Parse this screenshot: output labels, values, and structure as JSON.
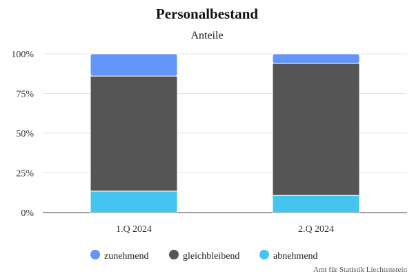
{
  "chart_data": {
    "type": "bar",
    "stacked": true,
    "title": "Personalbestand",
    "subtitle": "Anteile",
    "categories": [
      "1.Q 2024",
      "2.Q 2024"
    ],
    "series": [
      {
        "name": "abnehmend",
        "values": [
          13.5,
          10.8
        ],
        "color": "#43c5f0"
      },
      {
        "name": "gleichbleibend",
        "values": [
          72.5,
          83.2
        ],
        "color": "#555555"
      },
      {
        "name": "zunehmend",
        "values": [
          14.0,
          6.0
        ],
        "color": "#6495fa"
      }
    ],
    "ylim": [
      0,
      100
    ],
    "yticks": [
      "0%",
      "25%",
      "50%",
      "75%",
      "100%"
    ],
    "ytick_values": [
      0,
      25,
      50,
      75,
      100
    ],
    "grid": true,
    "legend_position": "bottom",
    "legend_order": [
      "zunehmend",
      "gleichbleibend",
      "abnehmend"
    ]
  },
  "credit": "Amt für Statistik Liechtenstein"
}
